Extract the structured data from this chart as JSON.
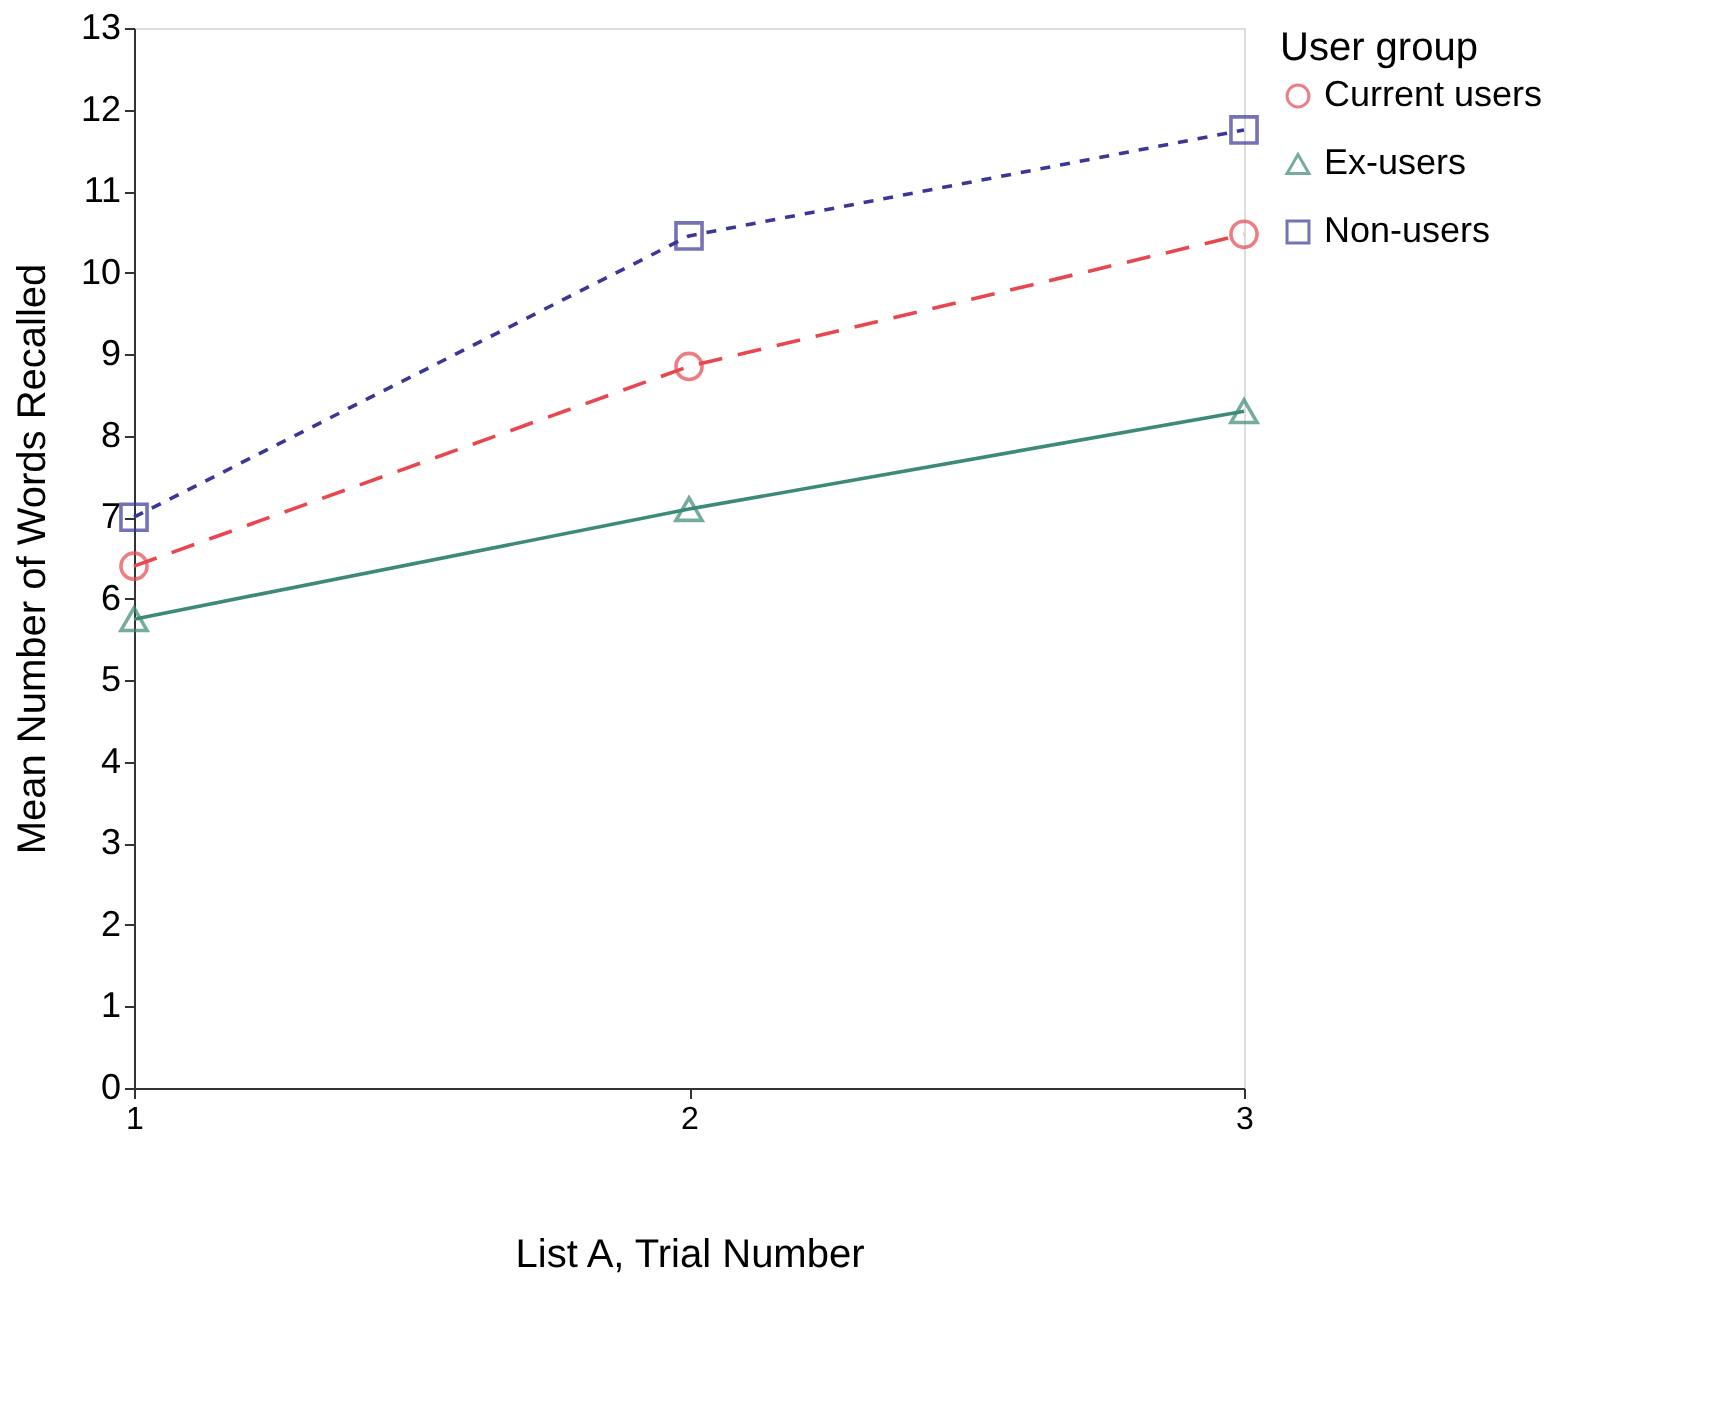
{
  "chart_data": {
    "type": "line",
    "xlabel": "List A, Trial Number",
    "ylabel": "Mean Number of Words Recalled",
    "legend_title": "User group",
    "x": [
      1,
      2,
      3
    ],
    "xlim": [
      1,
      3
    ],
    "xticks": [
      1,
      2,
      3
    ],
    "ylim": [
      0,
      13
    ],
    "yticks": [
      0,
      1,
      2,
      3,
      4,
      5,
      6,
      7,
      8,
      9,
      10,
      11,
      12,
      13
    ],
    "grid": false,
    "legend": "right",
    "series": [
      {
        "name": "Current users",
        "color": "#e8474f",
        "marker": "circle",
        "line_style": "dashed",
        "values": [
          6.4,
          8.85,
          10.47
        ]
      },
      {
        "name": "Ex-users",
        "color": "#3d8a78",
        "marker": "triangle",
        "line_style": "solid",
        "values": [
          5.75,
          7.1,
          8.3
        ]
      },
      {
        "name": "Non-users",
        "color": "#3c3796",
        "marker": "square",
        "line_style": "dotted",
        "values": [
          7.0,
          10.45,
          11.75
        ]
      }
    ]
  }
}
